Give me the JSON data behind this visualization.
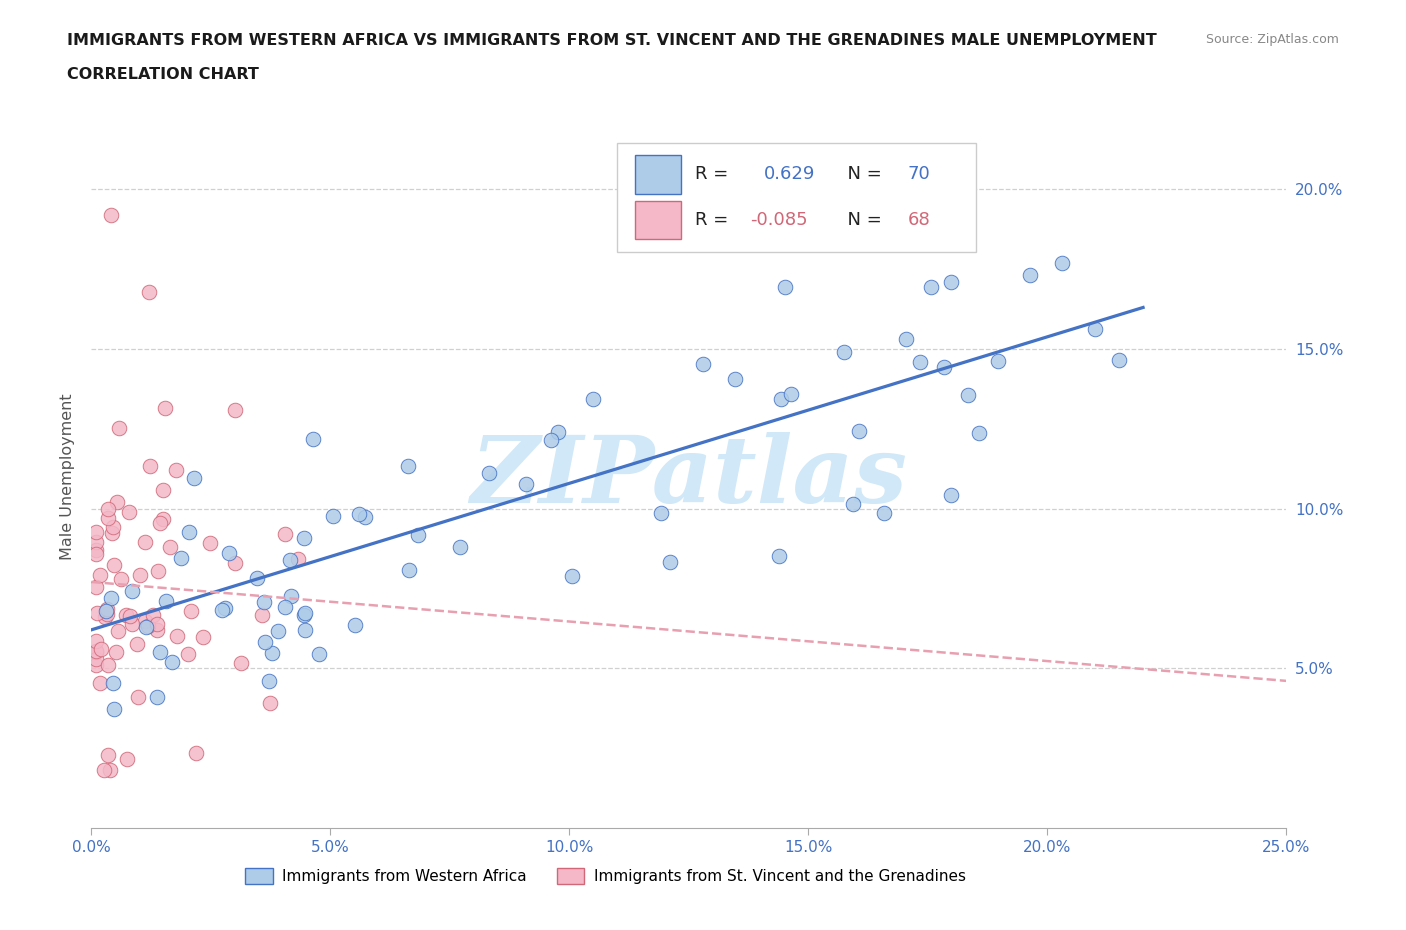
{
  "title_line1": "IMMIGRANTS FROM WESTERN AFRICA VS IMMIGRANTS FROM ST. VINCENT AND THE GRENADINES MALE UNEMPLOYMENT",
  "title_line2": "CORRELATION CHART",
  "source": "Source: ZipAtlas.com",
  "ylabel": "Male Unemployment",
  "xlim": [
    0.0,
    0.25
  ],
  "ylim": [
    0.0,
    0.22
  ],
  "xtick_vals": [
    0.0,
    0.05,
    0.1,
    0.15,
    0.2,
    0.25
  ],
  "xticklabels": [
    "0.0%",
    "5.0%",
    "10.0%",
    "15.0%",
    "20.0%",
    "25.0%"
  ],
  "ytick_vals": [
    0.05,
    0.1,
    0.15,
    0.2
  ],
  "yticklabels": [
    "5.0%",
    "10.0%",
    "15.0%",
    "20.0%"
  ],
  "r_blue": 0.629,
  "n_blue": 70,
  "r_pink": -0.085,
  "n_pink": 68,
  "color_blue_fill": "#aecce8",
  "color_blue_edge": "#4472c4",
  "color_pink_fill": "#f4b8c8",
  "color_pink_edge": "#d06878",
  "color_blue_line": "#4472c4",
  "color_pink_line": "#e8a0b0",
  "color_axis_text": "#4472c4",
  "color_title": "#1a1a1a",
  "color_source": "#888888",
  "color_ylabel": "#555555",
  "color_grid": "#d0d0d0",
  "watermark": "ZIPatlas",
  "watermark_color": "#d0e8f8",
  "label_blue": "Immigrants from Western Africa",
  "label_pink": "Immigrants from St. Vincent and the Grenadines",
  "blue_line_x0": 0.0,
  "blue_line_x1": 0.22,
  "blue_line_y0": 0.062,
  "blue_line_y1": 0.163,
  "pink_line_x0": 0.0,
  "pink_line_x1": 0.25,
  "pink_line_y0": 0.077,
  "pink_line_y1": 0.046
}
